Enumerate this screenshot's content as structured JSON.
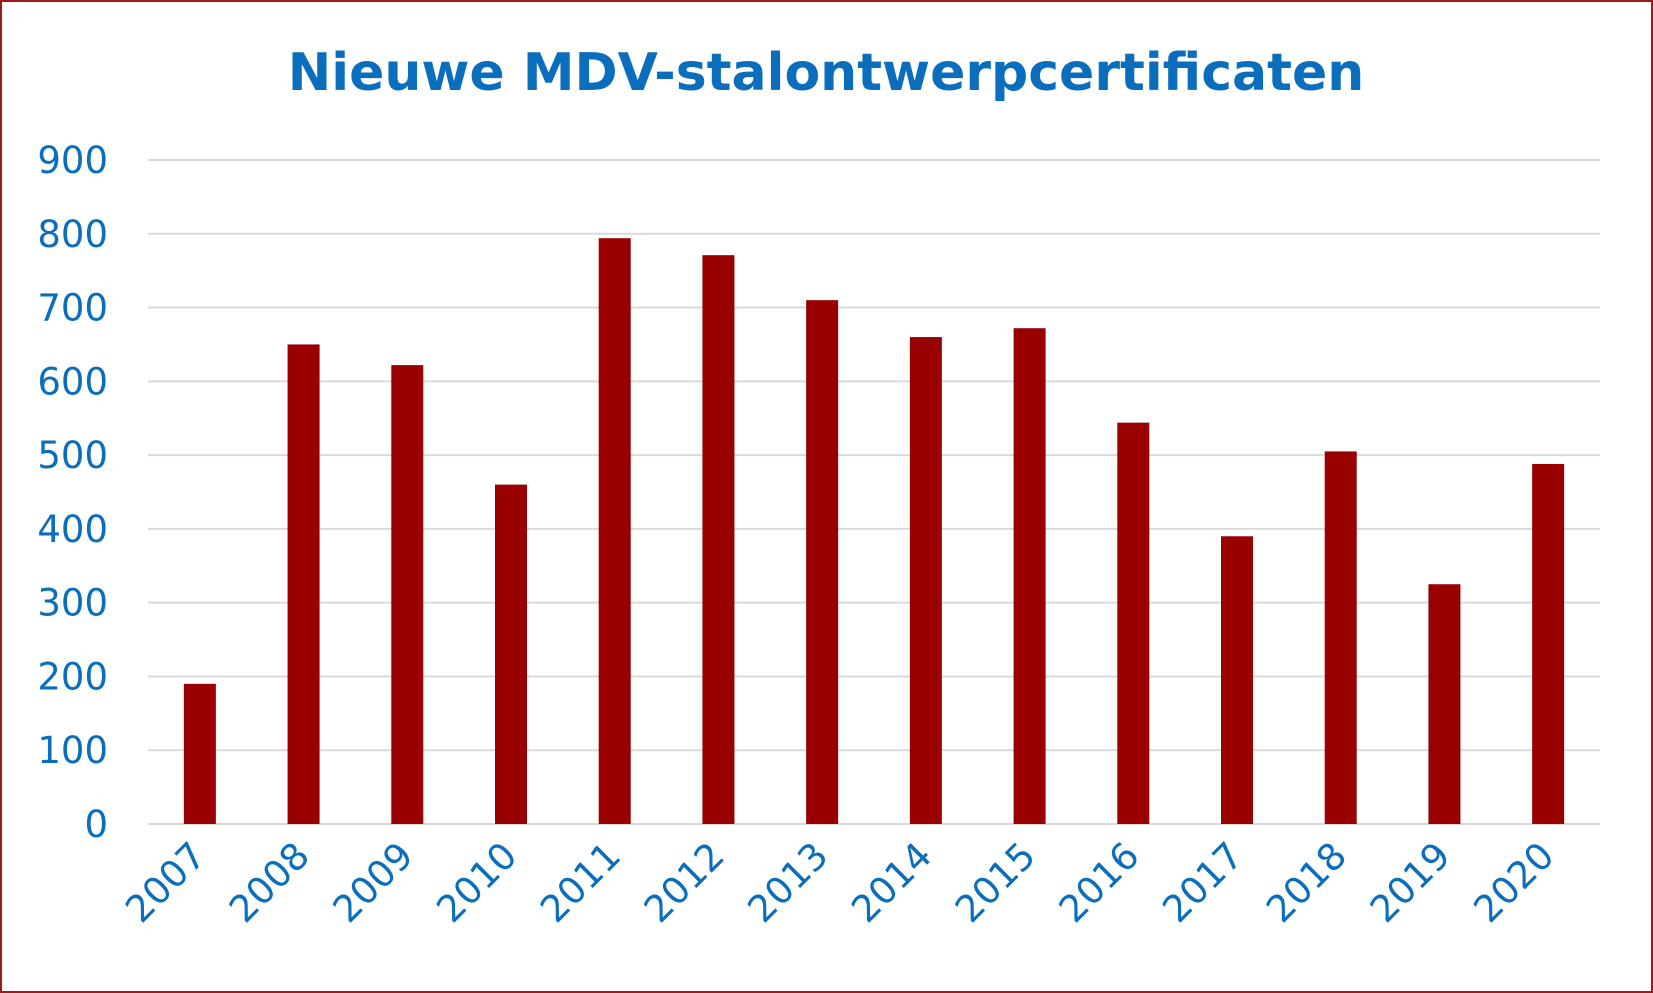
{
  "chart_data": {
    "type": "bar",
    "title": "Nieuwe MDV-stalontwerpcertificaten",
    "xlabel": "",
    "ylabel": "",
    "categories": [
      "2007",
      "2008",
      "2009",
      "2010",
      "2011",
      "2012",
      "2013",
      "2014",
      "2015",
      "2016",
      "2017",
      "2018",
      "2019",
      "2020"
    ],
    "values": [
      190,
      650,
      622,
      460,
      794,
      771,
      710,
      660,
      672,
      544,
      390,
      505,
      325,
      488
    ],
    "ylim": [
      0,
      900
    ],
    "yticks": [
      "0",
      "100",
      "200",
      "300",
      "400",
      "500",
      "600",
      "700",
      "800",
      "900"
    ],
    "grid": true,
    "legend": "none"
  },
  "colors": {
    "bar": "#990000",
    "text": "#0a6ebd",
    "grid": "#d9d9d9",
    "border": "#a01818"
  }
}
